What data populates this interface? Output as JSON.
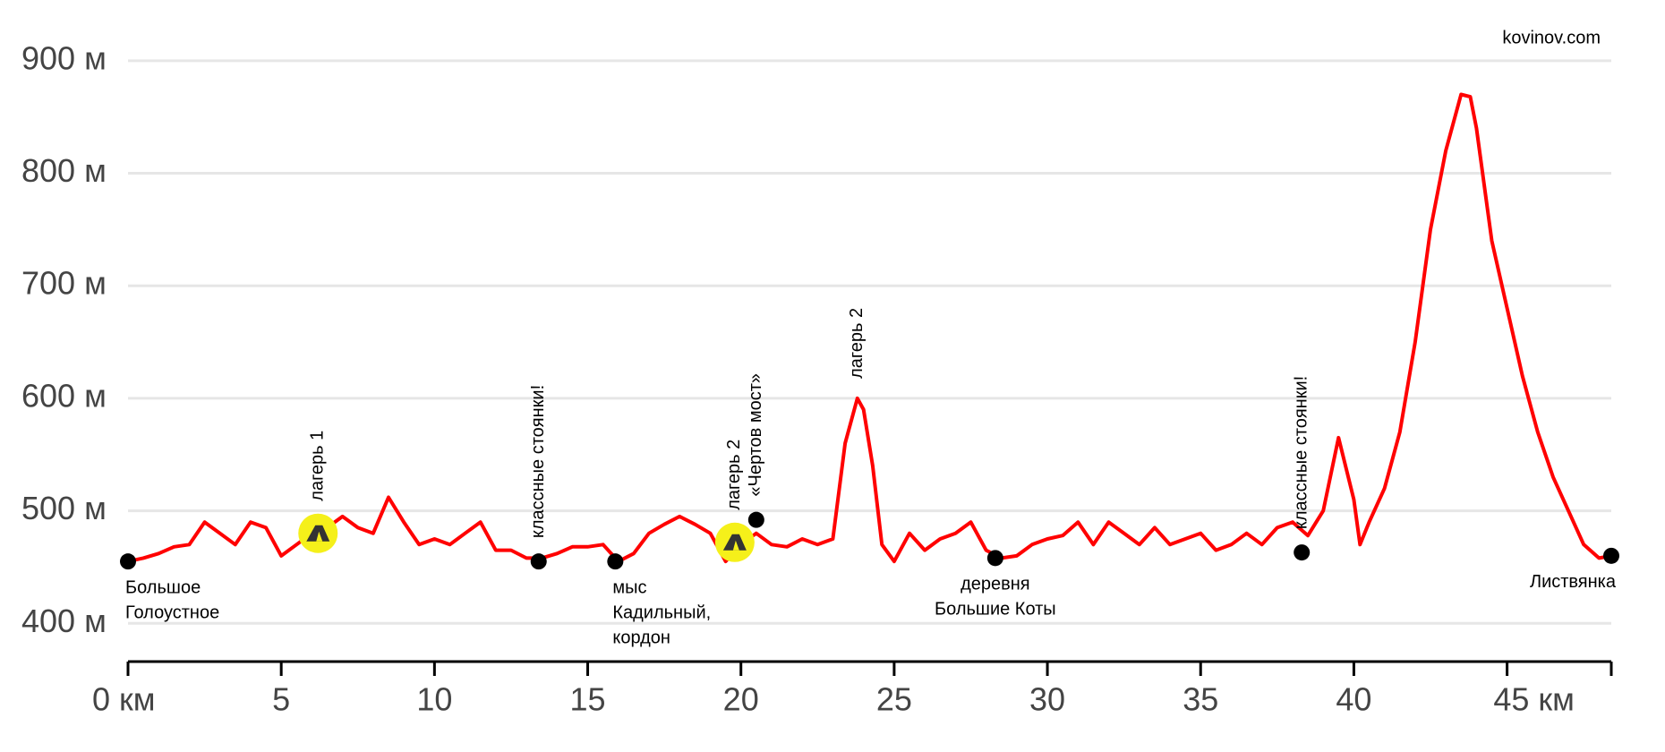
{
  "chart_data": {
    "type": "line",
    "source": "kovinov.com",
    "color": "#ff0000",
    "grid": true,
    "xlim": [
      0,
      48.4
    ],
    "ylim": [
      366,
      950
    ],
    "xticks": [
      {
        "value": 0,
        "label": "0 км"
      },
      5,
      10,
      15,
      20,
      25,
      30,
      35,
      40,
      {
        "value": 45,
        "label": "45 км"
      }
    ],
    "yticks": [
      {
        "value": 400,
        "label": "400 м"
      },
      {
        "value": 500,
        "label": "500 м"
      },
      {
        "value": 600,
        "label": "600 м"
      },
      {
        "value": 700,
        "label": "700 м"
      },
      {
        "value": 800,
        "label": "800 м"
      },
      {
        "value": 900,
        "label": "900 м"
      }
    ],
    "x": [
      0,
      0.5,
      1,
      1.5,
      2,
      2.5,
      3,
      3.5,
      4,
      4.5,
      5,
      5.5,
      6,
      6.5,
      7,
      7.5,
      8,
      8.5,
      9,
      9.5,
      10,
      10.5,
      11,
      11.5,
      12,
      12.5,
      13,
      13.5,
      14,
      14.5,
      15,
      15.5,
      16,
      16.5,
      17,
      17.5,
      18,
      18.5,
      19,
      19.5,
      20,
      20.5,
      21,
      21.5,
      22,
      22.5,
      23,
      23.4,
      23.8,
      24,
      24.3,
      24.6,
      25,
      25.5,
      26,
      26.5,
      27,
      27.5,
      28,
      28.5,
      29,
      29.5,
      30,
      30.5,
      31,
      31.5,
      32,
      32.5,
      33,
      33.5,
      34,
      34.5,
      35,
      35.5,
      36,
      36.5,
      37,
      37.5,
      38,
      38.5,
      39,
      39.5,
      40,
      40.2,
      40.5,
      41,
      41.5,
      42,
      42.5,
      43,
      43.5,
      43.8,
      44,
      44.5,
      45,
      45.5,
      46,
      46.5,
      47,
      47.5,
      48,
      48.4
    ],
    "values": [
      455,
      458,
      462,
      468,
      470,
      490,
      480,
      470,
      490,
      485,
      460,
      470,
      480,
      485,
      495,
      485,
      480,
      512,
      490,
      470,
      475,
      470,
      480,
      490,
      465,
      465,
      458,
      458,
      462,
      468,
      468,
      470,
      455,
      462,
      480,
      488,
      495,
      488,
      480,
      455,
      470,
      480,
      470,
      468,
      475,
      470,
      475,
      560,
      600,
      590,
      540,
      470,
      455,
      480,
      465,
      475,
      480,
      490,
      465,
      458,
      460,
      470,
      475,
      478,
      490,
      470,
      490,
      480,
      470,
      485,
      470,
      475,
      480,
      465,
      470,
      480,
      470,
      485,
      490,
      478,
      500,
      565,
      510,
      470,
      490,
      520,
      570,
      650,
      750,
      820,
      870,
      868,
      840,
      740,
      680,
      620,
      570,
      530,
      500,
      470,
      458,
      460
    ],
    "points": [
      {
        "x": 0,
        "y": 455,
        "label": [
          "Большое",
          "Голоустное"
        ],
        "anchor": "start"
      },
      {
        "x": 6.2,
        "y": 480,
        "label": [
          "лагерь 1"
        ],
        "vertical": true,
        "camp": true
      },
      {
        "x": 13.4,
        "y": 455,
        "label": [
          "классные стоянки!"
        ],
        "vertical": true
      },
      {
        "x": 15.9,
        "y": 455,
        "label": [
          "мыс",
          "Кадильный,",
          "кордон"
        ],
        "anchor": "start"
      },
      {
        "x": 19.8,
        "y": 472,
        "label": [
          "лагерь 2"
        ],
        "vertical": true,
        "camp": true
      },
      {
        "x": 20.5,
        "y": 492,
        "label": [
          "«Чертов мост»"
        ],
        "vertical": true
      },
      {
        "x": 23.8,
        "y": 600,
        "label": [
          "лагерь 2"
        ],
        "vertical": true,
        "noDot": true
      },
      {
        "x": 28.3,
        "y": 458,
        "label": [
          "деревня",
          "Большие Коты"
        ],
        "anchor": "middle"
      },
      {
        "x": 38.3,
        "y": 463,
        "label": [
          "классные стоянки!"
        ],
        "vertical": true
      },
      {
        "x": 48.4,
        "y": 460,
        "label": [
          "Листвянка"
        ],
        "anchor": "end"
      }
    ]
  }
}
